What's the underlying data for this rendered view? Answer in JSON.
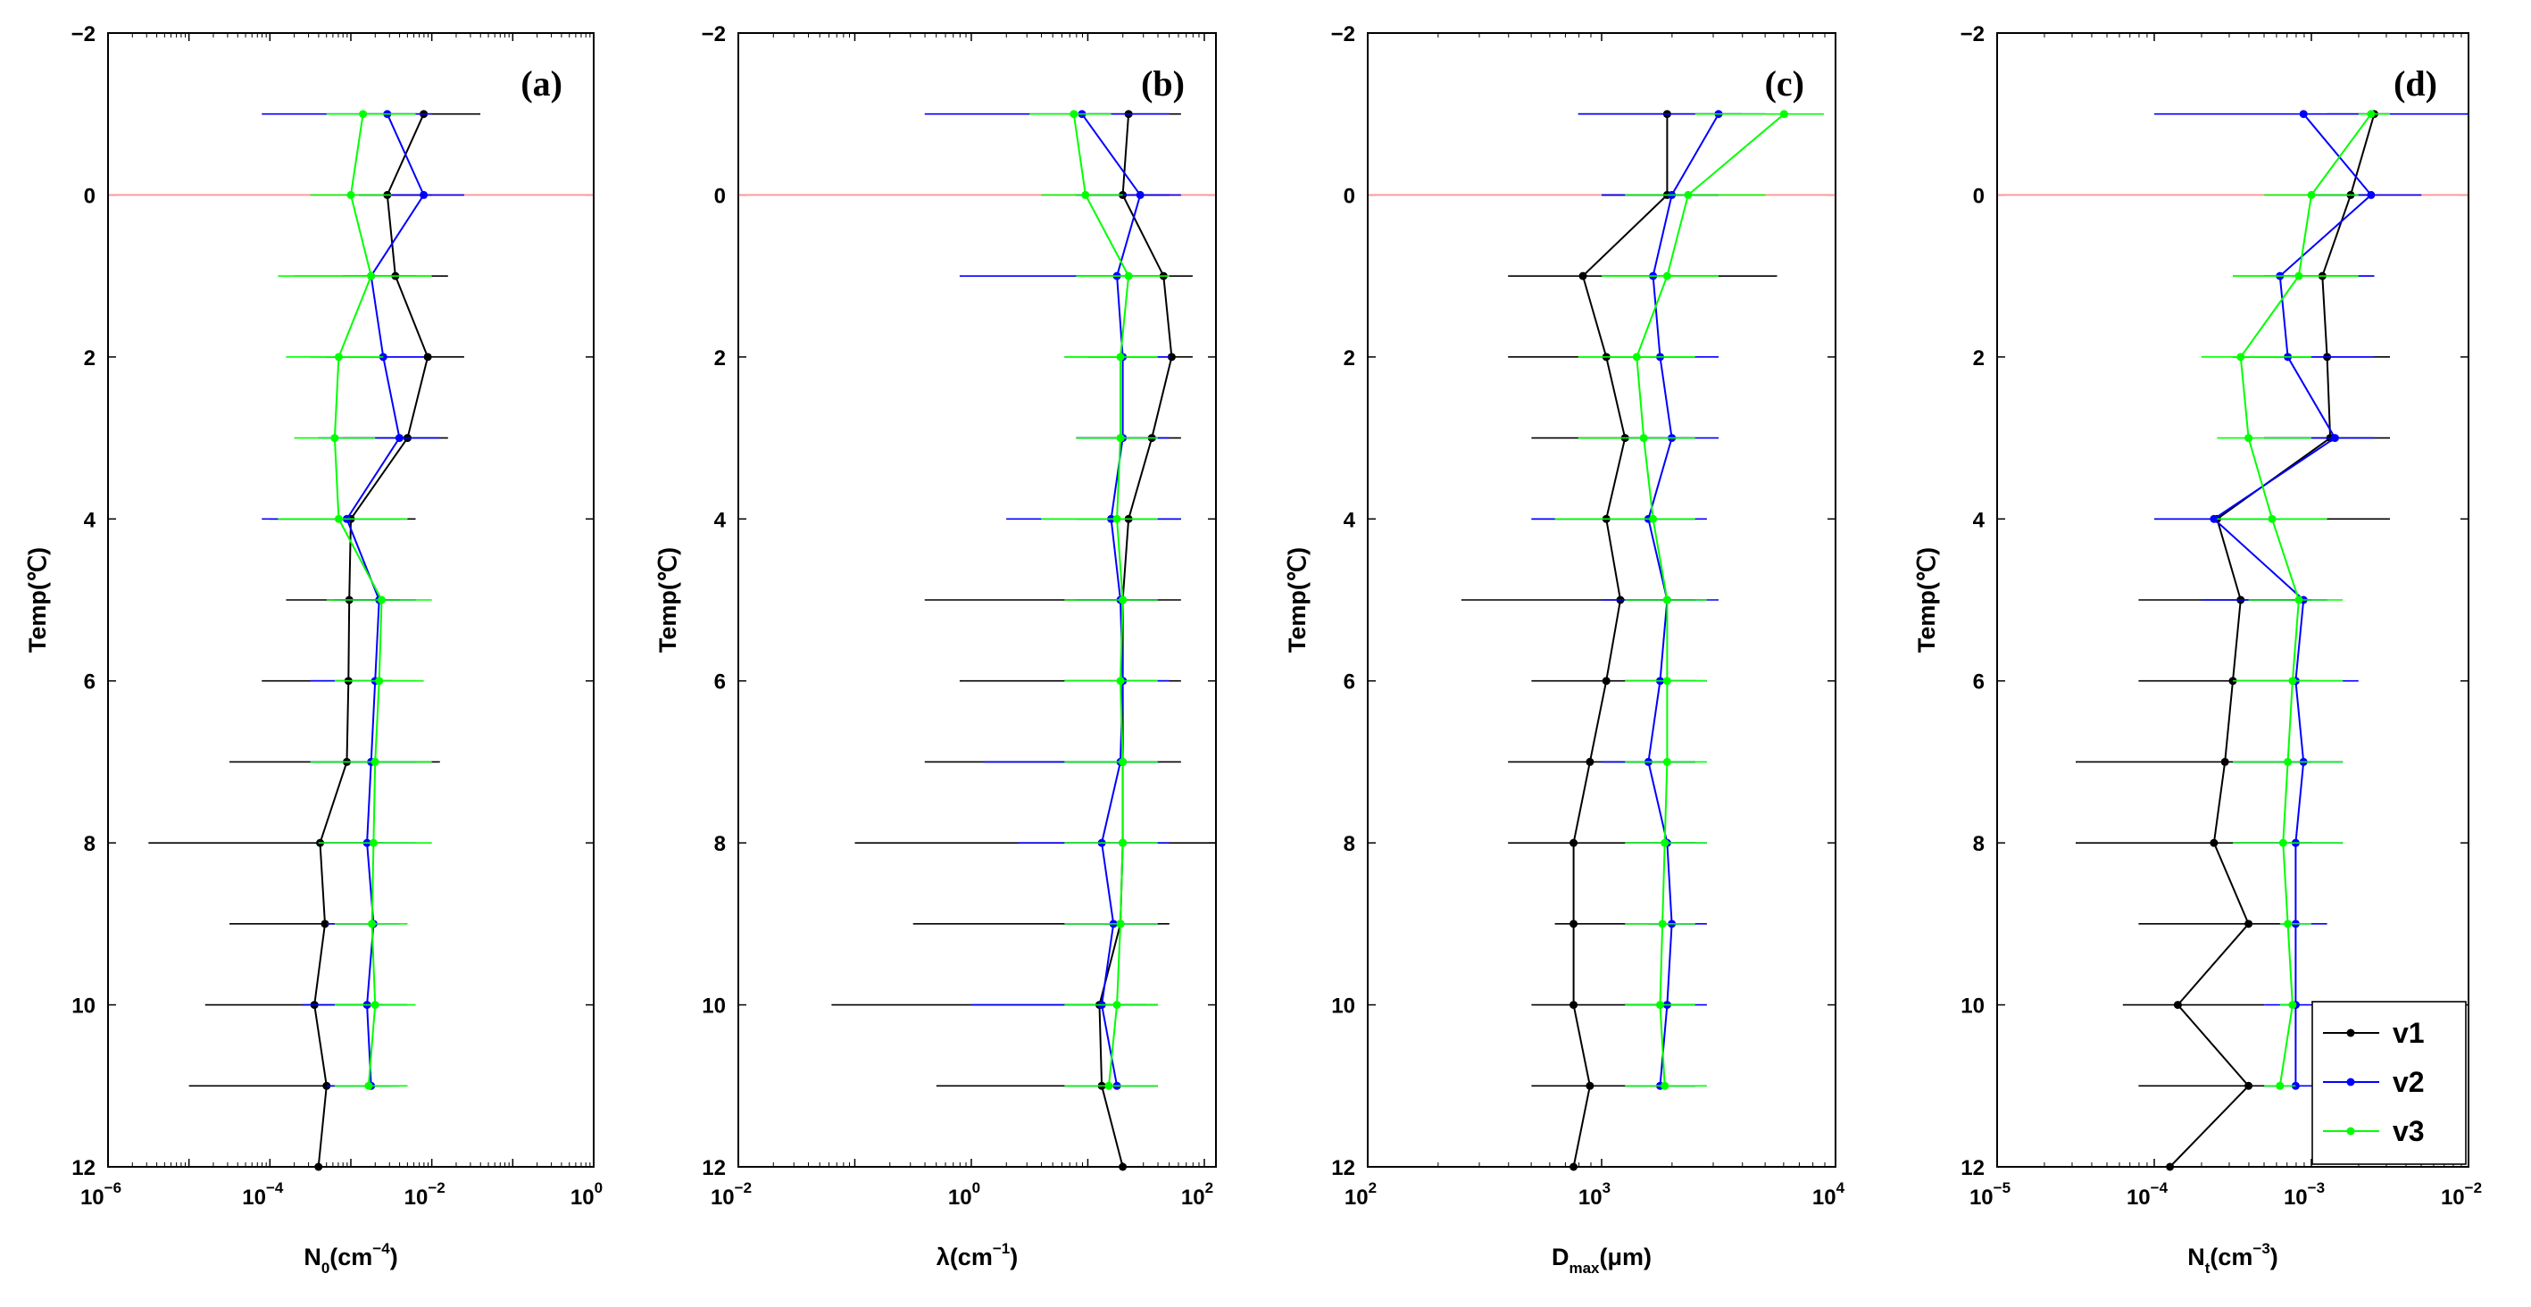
{
  "chart_data": [
    {
      "type": "line",
      "panel": "(a)",
      "x_scale": "log",
      "xlim_exp": [
        -6,
        0
      ],
      "x_tick_exponents": [
        "-6",
        "-4",
        "-2",
        "0"
      ],
      "x_tick_base": "10",
      "xlabel": {
        "main": "N",
        "sub": "0",
        "unit": "(cm",
        "unit_sup": "−4",
        "close": ")"
      },
      "ylabel": "Temp(℃)",
      "ylim": [
        -2,
        12
      ],
      "y_ticks": [
        "−2",
        "0",
        "2",
        "4",
        "6",
        "8",
        "10",
        "12"
      ],
      "reference_line": {
        "y": 0,
        "color": "#ff9c9c"
      },
      "series": [
        {
          "name": "v1",
          "color": "#000000",
          "y": [
            -1,
            0,
            1,
            2,
            3,
            4,
            5,
            6,
            7,
            8,
            9,
            10,
            11,
            12
          ],
          "x_exp": [
            -2.1,
            -2.55,
            -2.45,
            -2.05,
            -2.3,
            -3.0,
            -3.02,
            -3.03,
            -3.05,
            -3.38,
            -3.32,
            -3.45,
            -3.3,
            -3.4
          ],
          "err_lo": [
            -2.9,
            -2.9,
            -3.1,
            -3.3,
            -3.1,
            -4.0,
            -3.8,
            -4.1,
            -4.5,
            -5.5,
            -4.5,
            -4.8,
            -5.0,
            -4.5
          ],
          "err_hi": [
            -1.4,
            -2.0,
            -1.8,
            -1.6,
            -1.8,
            -2.2,
            -2.4,
            -2.5,
            -1.9,
            -2.6,
            -2.7,
            -2.6,
            -2.5,
            -2.4
          ]
        },
        {
          "name": "v2",
          "color": "#0000ff",
          "y": [
            -1,
            0,
            1,
            2,
            3,
            4,
            5,
            6,
            7,
            8,
            9,
            10,
            11
          ],
          "x_exp": [
            -2.55,
            -2.1,
            -2.75,
            -2.6,
            -2.4,
            -3.05,
            -2.65,
            -2.7,
            -2.75,
            -2.8,
            -2.72,
            -2.8,
            -2.75
          ],
          "err_lo": [
            -4.1,
            -2.9,
            -3.7,
            -3.5,
            -3.4,
            -4.1,
            -3.2,
            -3.5,
            -3.5,
            -3.4,
            -3.3,
            -3.6,
            -3.3
          ],
          "err_hi": [
            -2.0,
            -1.6,
            -2.2,
            -2.1,
            -1.9,
            -2.4,
            -2.2,
            -2.2,
            -2.2,
            -2.2,
            -2.4,
            -2.3,
            -2.4
          ]
        },
        {
          "name": "v3",
          "color": "#00ff00",
          "y": [
            -1,
            0,
            1,
            2,
            3,
            4,
            5,
            6,
            7,
            8,
            9,
            10,
            11
          ],
          "x_exp": [
            -2.85,
            -3.0,
            -2.75,
            -3.15,
            -3.2,
            -3.15,
            -2.62,
            -2.65,
            -2.7,
            -2.72,
            -2.74,
            -2.7,
            -2.78
          ],
          "err_lo": [
            -3.3,
            -3.5,
            -3.9,
            -3.8,
            -3.7,
            -3.9,
            -3.3,
            -3.2,
            -3.5,
            -3.4,
            -3.2,
            -3.2,
            -3.2
          ],
          "err_hi": [
            -2.2,
            -2.5,
            -2.0,
            -2.6,
            -2.7,
            -2.3,
            -2.0,
            -2.1,
            -2.0,
            -2.0,
            -2.3,
            -2.2,
            -2.3
          ]
        }
      ]
    },
    {
      "type": "line",
      "panel": "(b)",
      "x_scale": "log",
      "xlim_exp": [
        -2,
        2.1
      ],
      "x_tick_exponents": [
        "-2",
        "0",
        "2"
      ],
      "x_tick_base": "10",
      "xlabel": {
        "main": "λ",
        "sub": "",
        "unit": "(cm",
        "unit_sup": "−1",
        "close": ")"
      },
      "ylabel": "Temp(℃)",
      "ylim": [
        -2,
        12
      ],
      "y_ticks": [
        "−2",
        "0",
        "2",
        "4",
        "6",
        "8",
        "10",
        "12"
      ],
      "reference_line": {
        "y": 0,
        "color": "#ff9c9c"
      },
      "series": [
        {
          "name": "v1",
          "color": "#000000",
          "y": [
            -1,
            0,
            1,
            2,
            3,
            4,
            5,
            6,
            7,
            8,
            9,
            10,
            11,
            12
          ],
          "x_exp": [
            1.35,
            1.3,
            1.65,
            1.72,
            1.55,
            1.35,
            1.3,
            1.3,
            1.3,
            1.3,
            1.28,
            1.1,
            1.12,
            1.3
          ],
          "err_lo": [
            1.0,
            0.9,
            0.9,
            1.0,
            0.9,
            0.9,
            -0.4,
            -0.1,
            -0.4,
            -1.0,
            -0.5,
            -1.2,
            -0.3,
            -1.0
          ],
          "err_hi": [
            1.8,
            1.7,
            1.9,
            1.9,
            1.8,
            1.8,
            1.8,
            1.8,
            1.8,
            2.1,
            1.7,
            1.6,
            1.6,
            2.1
          ]
        },
        {
          "name": "v2",
          "color": "#0000ff",
          "y": [
            -1,
            0,
            1,
            2,
            3,
            4,
            5,
            6,
            7,
            8,
            9,
            10,
            11
          ],
          "x_exp": [
            0.95,
            1.45,
            1.25,
            1.3,
            1.3,
            1.2,
            1.28,
            1.3,
            1.28,
            1.12,
            1.22,
            1.12,
            1.25
          ],
          "err_lo": [
            -0.4,
            0.9,
            -0.1,
            0.8,
            0.9,
            0.3,
            0.9,
            0.8,
            0.1,
            0.4,
            0.8,
            0.0,
            0.8
          ],
          "err_hi": [
            1.7,
            1.8,
            1.7,
            1.7,
            1.7,
            1.8,
            1.6,
            1.7,
            1.6,
            1.7,
            1.6,
            1.5,
            1.6
          ]
        },
        {
          "name": "v3",
          "color": "#00ff00",
          "y": [
            -1,
            0,
            1,
            2,
            3,
            4,
            5,
            6,
            7,
            8,
            9,
            10,
            11
          ],
          "x_exp": [
            0.88,
            0.98,
            1.35,
            1.28,
            1.28,
            1.25,
            1.3,
            1.28,
            1.3,
            1.3,
            1.28,
            1.25,
            1.18
          ],
          "err_lo": [
            0.5,
            0.6,
            0.9,
            0.8,
            0.9,
            0.6,
            0.8,
            0.8,
            0.8,
            0.8,
            0.8,
            0.8,
            0.8
          ],
          "err_hi": [
            1.2,
            1.3,
            1.7,
            1.6,
            1.6,
            1.6,
            1.6,
            1.6,
            1.6,
            1.6,
            1.6,
            1.6,
            1.6
          ]
        }
      ]
    },
    {
      "type": "line",
      "panel": "(c)",
      "x_scale": "log",
      "xlim_exp": [
        2,
        4
      ],
      "x_tick_exponents": [
        "2",
        "3",
        "4"
      ],
      "x_tick_base": "10",
      "xlabel": {
        "main": "D",
        "sub": "max",
        "unit": "(μm",
        "unit_sup": "",
        "close": ")"
      },
      "ylabel": "Temp(℃)",
      "ylim": [
        -2,
        12
      ],
      "y_ticks": [
        "−2",
        "0",
        "2",
        "4",
        "6",
        "8",
        "10",
        "12"
      ],
      "reference_line": {
        "y": 0,
        "color": "#ff9c9c"
      },
      "series": [
        {
          "name": "v1",
          "color": "#000000",
          "y": [
            -1,
            0,
            1,
            2,
            3,
            4,
            5,
            6,
            7,
            8,
            9,
            10,
            11,
            12
          ],
          "x_exp": [
            3.28,
            3.28,
            2.92,
            3.02,
            3.1,
            3.02,
            3.08,
            3.02,
            2.95,
            2.88,
            2.88,
            2.88,
            2.95,
            2.88
          ],
          "err_lo": [
            2.9,
            3.0,
            2.6,
            2.6,
            2.7,
            2.7,
            2.4,
            2.7,
            2.6,
            2.6,
            2.8,
            2.7,
            2.7,
            2.5
          ],
          "err_hi": [
            3.6,
            3.5,
            3.75,
            3.4,
            3.4,
            3.4,
            3.4,
            3.4,
            3.4,
            3.4,
            3.4,
            3.4,
            3.4,
            3.25
          ]
        },
        {
          "name": "v2",
          "color": "#0000ff",
          "y": [
            -1,
            0,
            1,
            2,
            3,
            4,
            5,
            6,
            7,
            8,
            9,
            10,
            11
          ],
          "x_exp": [
            3.5,
            3.3,
            3.22,
            3.25,
            3.3,
            3.2,
            3.28,
            3.25,
            3.2,
            3.28,
            3.3,
            3.28,
            3.25
          ],
          "err_lo": [
            2.9,
            3.0,
            3.0,
            3.0,
            3.1,
            2.7,
            3.0,
            3.1,
            3.0,
            3.1,
            3.2,
            3.1,
            3.1
          ],
          "err_hi": [
            3.7,
            3.5,
            3.5,
            3.5,
            3.5,
            3.45,
            3.5,
            3.45,
            3.4,
            3.45,
            3.45,
            3.45,
            3.4
          ]
        },
        {
          "name": "v3",
          "color": "#00ff00",
          "y": [
            -1,
            0,
            1,
            2,
            3,
            4,
            5,
            6,
            7,
            8,
            9,
            10,
            11
          ],
          "x_exp": [
            3.78,
            3.37,
            3.28,
            3.15,
            3.18,
            3.22,
            3.28,
            3.28,
            3.28,
            3.27,
            3.26,
            3.25,
            3.27
          ],
          "err_lo": [
            3.4,
            3.1,
            3.0,
            2.9,
            2.9,
            2.8,
            3.1,
            3.1,
            3.1,
            3.1,
            3.1,
            3.1,
            3.1
          ],
          "err_hi": [
            3.95,
            3.7,
            3.5,
            3.4,
            3.4,
            3.4,
            3.45,
            3.45,
            3.45,
            3.45,
            3.4,
            3.4,
            3.45
          ]
        }
      ]
    },
    {
      "type": "line",
      "panel": "(d)",
      "x_scale": "log",
      "xlim_exp": [
        -5,
        -2
      ],
      "x_tick_exponents": [
        "-5",
        "-4",
        "-3",
        "-2"
      ],
      "x_tick_base": "10",
      "xlabel": {
        "main": "N",
        "sub": "t",
        "unit": "(cm",
        "unit_sup": "−3",
        "close": ")"
      },
      "ylabel": "Temp(℃)",
      "ylim": [
        -2,
        12
      ],
      "y_ticks": [
        "−2",
        "0",
        "2",
        "4",
        "6",
        "8",
        "10",
        "12"
      ],
      "reference_line": {
        "y": 0,
        "color": "#ff9c9c"
      },
      "legend": {
        "position": "bottom-right",
        "entries": [
          "v1",
          "v2",
          "v3"
        ]
      },
      "series": [
        {
          "name": "v1",
          "color": "#000000",
          "y": [
            -1,
            0,
            1,
            2,
            3,
            4,
            5,
            6,
            7,
            8,
            9,
            10,
            11,
            12
          ],
          "x_exp": [
            -2.6,
            -2.75,
            -2.93,
            -2.9,
            -2.88,
            -3.6,
            -3.45,
            -3.5,
            -3.55,
            -3.62,
            -3.4,
            -3.85,
            -3.4,
            -3.9
          ],
          "err_lo": [
            -2.9,
            -3.0,
            -3.3,
            -3.5,
            -3.3,
            -4.0,
            -4.1,
            -4.1,
            -4.5,
            -4.5,
            -4.1,
            -4.2,
            -4.1,
            -4.1
          ],
          "err_hi": [
            -2.5,
            -2.6,
            -2.6,
            -2.5,
            -2.5,
            -2.5,
            -3.0,
            -3.0,
            -3.0,
            -3.0,
            -3.1,
            -3.3,
            -3.2,
            -3.6
          ]
        },
        {
          "name": "v2",
          "color": "#0000ff",
          "y": [
            -1,
            0,
            1,
            2,
            3,
            4,
            5,
            6,
            7,
            8,
            9,
            10,
            11
          ],
          "x_exp": [
            -3.05,
            -2.62,
            -3.2,
            -3.15,
            -2.85,
            -3.62,
            -3.05,
            -3.1,
            -3.05,
            -3.1,
            -3.1,
            -3.1,
            -3.1
          ],
          "err_lo": [
            -4.0,
            -3.0,
            -3.5,
            -3.5,
            -3.3,
            -4.0,
            -3.7,
            -3.5,
            -3.5,
            -3.5,
            -3.2,
            -3.3,
            -3.3
          ],
          "err_hi": [
            -2.0,
            -2.3,
            -2.6,
            -2.6,
            -2.6,
            -3.2,
            -2.9,
            -2.7,
            -2.8,
            -2.8,
            -2.9,
            -2.9,
            -2.9
          ]
        },
        {
          "name": "v3",
          "color": "#00ff00",
          "y": [
            -1,
            0,
            1,
            2,
            3,
            4,
            5,
            6,
            7,
            8,
            9,
            10,
            11
          ],
          "x_exp": [
            -2.62,
            -3.0,
            -3.08,
            -3.45,
            -3.4,
            -3.25,
            -3.08,
            -3.12,
            -3.15,
            -3.18,
            -3.15,
            -3.12,
            -3.2
          ],
          "err_lo": [
            -2.7,
            -3.3,
            -3.5,
            -3.7,
            -3.6,
            -3.6,
            -3.4,
            -3.5,
            -3.5,
            -3.5,
            -3.2,
            -3.2,
            -3.3
          ],
          "err_hi": [
            -2.5,
            -2.7,
            -2.7,
            -3.0,
            -3.0,
            -2.9,
            -2.8,
            -2.8,
            -2.8,
            -2.8,
            -3.0,
            -3.1,
            -3.1
          ]
        }
      ]
    }
  ]
}
